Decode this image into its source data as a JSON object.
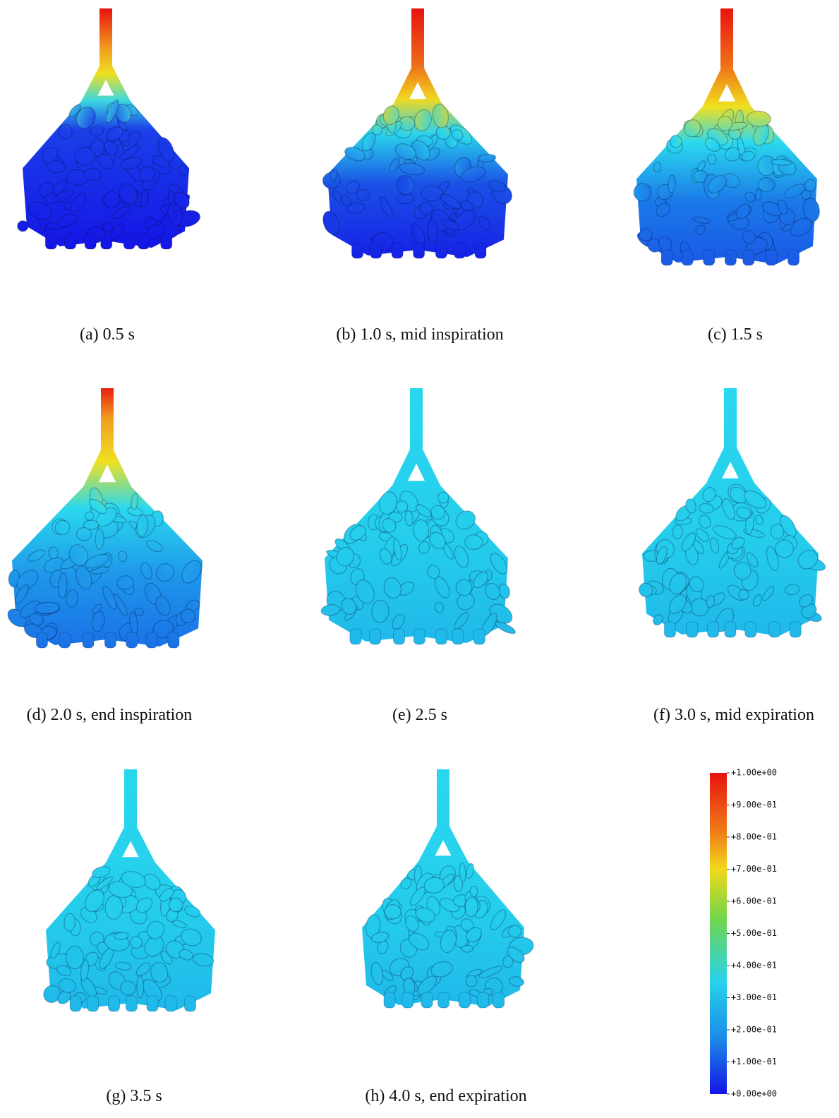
{
  "panels": [
    {
      "caption": "(a) 0.5 s"
    },
    {
      "caption": "(b) 1.0 s, mid inspiration"
    },
    {
      "caption": "(c) 1.5 s"
    },
    {
      "caption": "(d) 2.0 s, end inspiration"
    },
    {
      "caption": "(e) 2.5 s"
    },
    {
      "caption": "(f) 3.0 s, mid expiration"
    },
    {
      "caption": "(g) 3.5 s"
    },
    {
      "caption": "(h) 4.0 s, end expiration"
    }
  ],
  "colorbar": {
    "ticks": [
      {
        "value": 1.0,
        "label": "+1.00e+00"
      },
      {
        "value": 0.9,
        "label": "+9.00e-01"
      },
      {
        "value": 0.8,
        "label": "+8.00e-01"
      },
      {
        "value": 0.7,
        "label": "+7.00e-01"
      },
      {
        "value": 0.6,
        "label": "+6.00e-01"
      },
      {
        "value": 0.5,
        "label": "+5.00e-01"
      },
      {
        "value": 0.4,
        "label": "+4.00e-01"
      },
      {
        "value": 0.3,
        "label": "+3.00e-01"
      },
      {
        "value": 0.2,
        "label": "+2.00e-01"
      },
      {
        "value": 0.1,
        "label": "+1.00e-01"
      },
      {
        "value": 0.0,
        "label": "+0.00e+00"
      }
    ]
  }
}
